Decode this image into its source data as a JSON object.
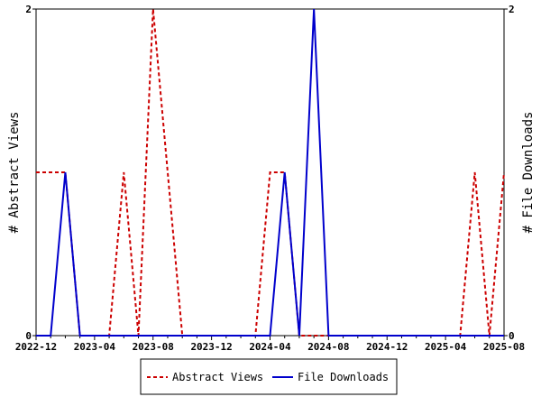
{
  "chart_data": {
    "type": "line",
    "title": "",
    "x_ticks": [
      "2022-12",
      "2023-04",
      "2023-08",
      "2023-12",
      "2024-04",
      "2024-08",
      "2024-12",
      "2025-04",
      "2025-08"
    ],
    "x_range": [
      "2022-12",
      "2025-08"
    ],
    "ylabel_left": "# Abstract Views",
    "ylabel_right": "# File Downloads",
    "ylim_left": [
      0,
      2
    ],
    "ylim_right": [
      0,
      2
    ],
    "y_ticks_left": [
      "0",
      "2"
    ],
    "y_ticks_right": [
      "0",
      "2"
    ],
    "grid": false,
    "legend_position": "bottom",
    "series": [
      {
        "name": "Abstract Views",
        "axis": "left",
        "color": "#cc0000",
        "style": "dashed",
        "points": [
          {
            "x": "2022-12",
            "y": 1
          },
          {
            "x": "2023-01",
            "y": 1
          },
          {
            "x": "2023-02",
            "y": 1
          },
          {
            "x": "2023-03",
            "y": 0
          },
          {
            "x": "2023-04",
            "y": 0
          },
          {
            "x": "2023-05",
            "y": 0
          },
          {
            "x": "2023-06",
            "y": 1
          },
          {
            "x": "2023-07",
            "y": 0
          },
          {
            "x": "2023-08",
            "y": 2
          },
          {
            "x": "2023-09",
            "y": 1
          },
          {
            "x": "2023-10",
            "y": 0
          },
          {
            "x": "2023-11",
            "y": 0
          },
          {
            "x": "2023-12",
            "y": 0
          },
          {
            "x": "2024-01",
            "y": 0
          },
          {
            "x": "2024-02",
            "y": 0
          },
          {
            "x": "2024-03",
            "y": 0
          },
          {
            "x": "2024-04",
            "y": 1
          },
          {
            "x": "2024-05",
            "y": 1
          },
          {
            "x": "2024-06",
            "y": 0
          },
          {
            "x": "2024-07",
            "y": 0
          },
          {
            "x": "2024-08",
            "y": 0
          },
          {
            "x": "2024-09",
            "y": 0
          },
          {
            "x": "2024-10",
            "y": 0
          },
          {
            "x": "2024-11",
            "y": 0
          },
          {
            "x": "2024-12",
            "y": 0
          },
          {
            "x": "2025-01",
            "y": 0
          },
          {
            "x": "2025-02",
            "y": 0
          },
          {
            "x": "2025-03",
            "y": 0
          },
          {
            "x": "2025-04",
            "y": 0
          },
          {
            "x": "2025-05",
            "y": 0
          },
          {
            "x": "2025-06",
            "y": 1
          },
          {
            "x": "2025-07",
            "y": 0
          },
          {
            "x": "2025-08",
            "y": 1
          }
        ]
      },
      {
        "name": "File Downloads",
        "axis": "right",
        "color": "#0000cc",
        "style": "solid",
        "points": [
          {
            "x": "2022-12",
            "y": 0
          },
          {
            "x": "2023-01",
            "y": 0
          },
          {
            "x": "2023-02",
            "y": 1
          },
          {
            "x": "2023-03",
            "y": 0
          },
          {
            "x": "2023-04",
            "y": 0
          },
          {
            "x": "2023-05",
            "y": 0
          },
          {
            "x": "2023-06",
            "y": 0
          },
          {
            "x": "2023-07",
            "y": 0
          },
          {
            "x": "2023-08",
            "y": 0
          },
          {
            "x": "2023-09",
            "y": 0
          },
          {
            "x": "2023-10",
            "y": 0
          },
          {
            "x": "2023-11",
            "y": 0
          },
          {
            "x": "2023-12",
            "y": 0
          },
          {
            "x": "2024-01",
            "y": 0
          },
          {
            "x": "2024-02",
            "y": 0
          },
          {
            "x": "2024-03",
            "y": 0
          },
          {
            "x": "2024-04",
            "y": 0
          },
          {
            "x": "2024-05",
            "y": 1
          },
          {
            "x": "2024-06",
            "y": 0
          },
          {
            "x": "2024-07",
            "y": 2
          },
          {
            "x": "2024-08",
            "y": 0
          },
          {
            "x": "2024-09",
            "y": 0
          },
          {
            "x": "2024-10",
            "y": 0
          },
          {
            "x": "2024-11",
            "y": 0
          },
          {
            "x": "2024-12",
            "y": 0
          },
          {
            "x": "2025-01",
            "y": 0
          },
          {
            "x": "2025-02",
            "y": 0
          },
          {
            "x": "2025-03",
            "y": 0
          },
          {
            "x": "2025-04",
            "y": 0
          },
          {
            "x": "2025-05",
            "y": 0
          },
          {
            "x": "2025-06",
            "y": 0
          },
          {
            "x": "2025-07",
            "y": 0
          },
          {
            "x": "2025-08",
            "y": 0
          }
        ]
      }
    ]
  }
}
